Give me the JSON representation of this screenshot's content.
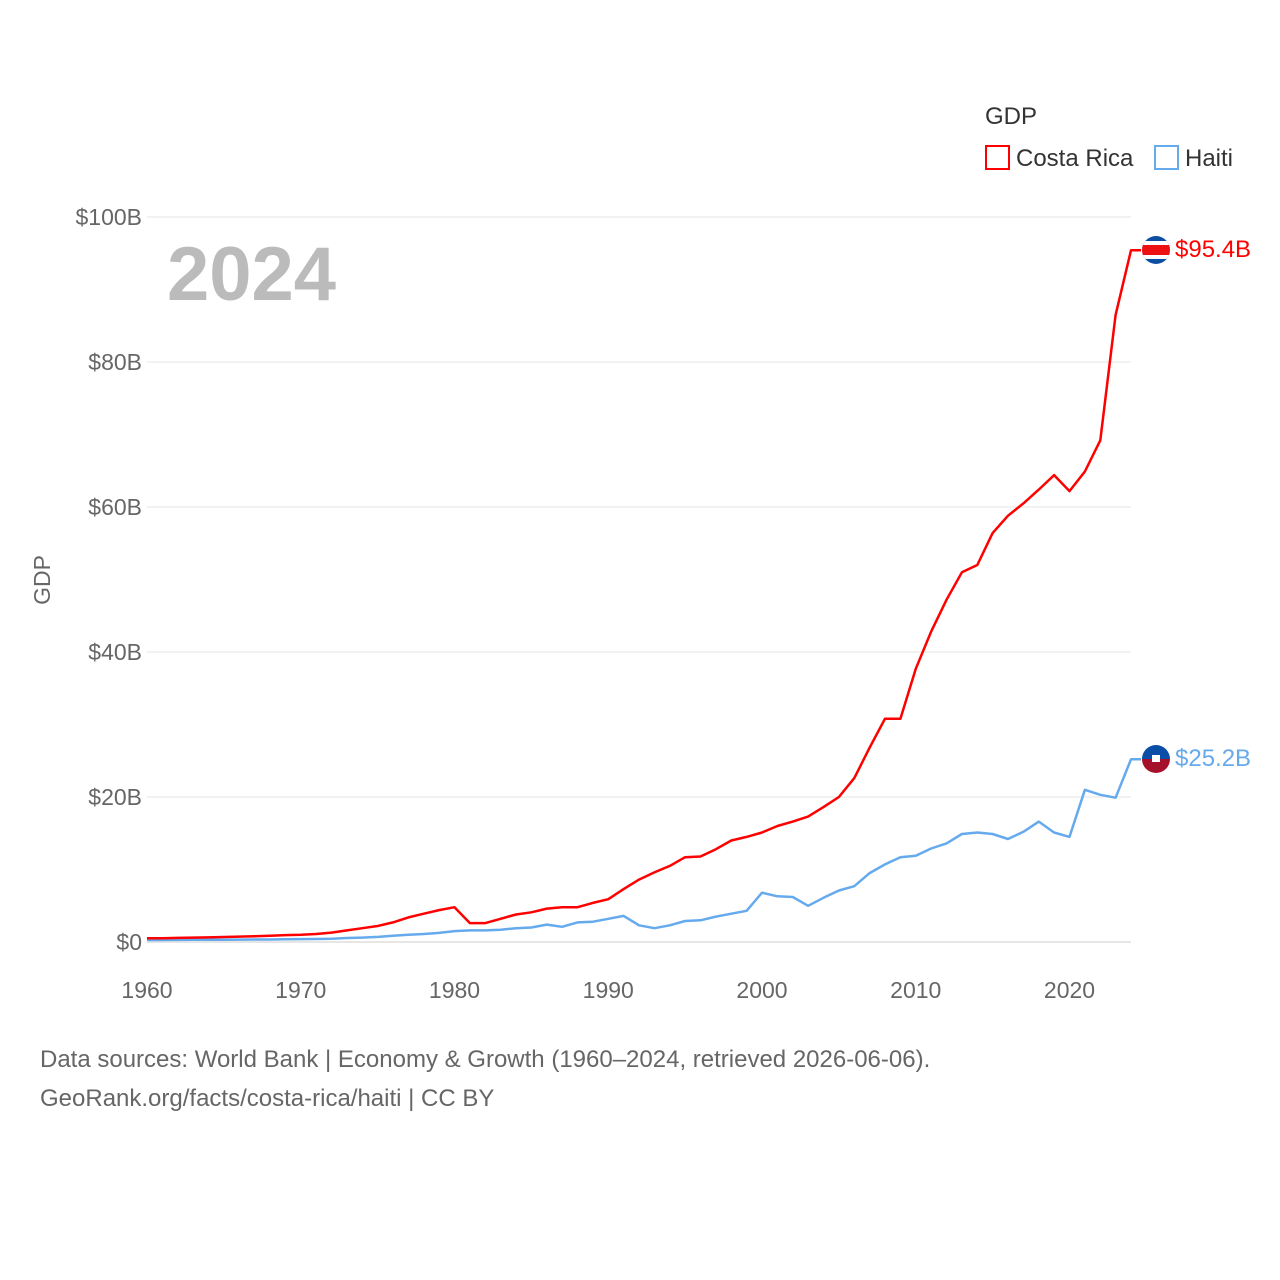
{
  "chart_data": {
    "type": "line",
    "title": "2024",
    "legend_title": "GDP",
    "legend_position": "top-right",
    "ylabel": "GDP",
    "xlabel": "",
    "xlim": [
      1960,
      2024
    ],
    "ylim": [
      0,
      100
    ],
    "y_unit": "billion USD",
    "grid": true,
    "x_ticks": [
      1960,
      1970,
      1980,
      1990,
      2000,
      2010,
      2020
    ],
    "x_tick_labels": [
      "1960",
      "1970",
      "1980",
      "1990",
      "2000",
      "2010",
      "2020"
    ],
    "y_ticks": [
      0,
      20,
      40,
      60,
      80,
      100
    ],
    "y_tick_labels": [
      "$0",
      "$20B",
      "$40B",
      "$60B",
      "$80B",
      "$100B"
    ],
    "x": [
      1960,
      1961,
      1962,
      1963,
      1964,
      1965,
      1966,
      1967,
      1968,
      1969,
      1970,
      1971,
      1972,
      1973,
      1974,
      1975,
      1976,
      1977,
      1978,
      1979,
      1980,
      1981,
      1982,
      1983,
      1984,
      1985,
      1986,
      1987,
      1988,
      1989,
      1990,
      1991,
      1992,
      1993,
      1994,
      1995,
      1996,
      1997,
      1998,
      1999,
      2000,
      2001,
      2002,
      2003,
      2004,
      2005,
      2006,
      2007,
      2008,
      2009,
      2010,
      2011,
      2012,
      2013,
      2014,
      2015,
      2016,
      2017,
      2018,
      2019,
      2020,
      2021,
      2022,
      2023,
      2024
    ],
    "series": [
      {
        "name": "Costa Rica",
        "color": "#ff0000",
        "end_label": "$95.4B",
        "values": [
          0.51,
          0.53,
          0.56,
          0.6,
          0.64,
          0.69,
          0.75,
          0.8,
          0.87,
          0.95,
          1.0,
          1.1,
          1.3,
          1.6,
          1.9,
          2.2,
          2.7,
          3.4,
          3.9,
          4.4,
          4.8,
          2.6,
          2.6,
          3.2,
          3.8,
          4.1,
          4.6,
          4.8,
          4.8,
          5.4,
          5.9,
          7.3,
          8.6,
          9.6,
          10.5,
          11.7,
          11.8,
          12.8,
          14.0,
          14.5,
          15.1,
          16.0,
          16.6,
          17.3,
          18.6,
          20.0,
          22.6,
          26.8,
          30.8,
          30.8,
          37.7,
          42.8,
          47.2,
          51.0,
          52.0,
          56.4,
          58.8,
          60.5,
          62.4,
          64.4,
          62.2,
          64.9,
          69.2,
          86.5,
          95.4
        ]
      },
      {
        "name": "Haiti",
        "color": "#66aaee",
        "end_label": "$25.2B",
        "values": [
          0.27,
          0.28,
          0.29,
          0.3,
          0.31,
          0.32,
          0.33,
          0.34,
          0.35,
          0.37,
          0.4,
          0.42,
          0.45,
          0.55,
          0.6,
          0.7,
          0.85,
          1.0,
          1.1,
          1.25,
          1.5,
          1.6,
          1.6,
          1.7,
          1.9,
          2.0,
          2.4,
          2.1,
          2.7,
          2.8,
          3.2,
          3.6,
          2.3,
          1.9,
          2.3,
          2.9,
          3.0,
          3.5,
          3.9,
          4.3,
          6.8,
          6.3,
          6.2,
          5.0,
          6.1,
          7.1,
          7.7,
          9.5,
          10.7,
          11.7,
          11.9,
          12.9,
          13.6,
          14.9,
          15.1,
          14.9,
          14.2,
          15.2,
          16.6,
          15.1,
          14.5,
          21.0,
          20.3,
          19.9,
          25.2
        ]
      }
    ]
  },
  "footer": {
    "line1": "Data sources: World Bank | Economy & Growth (1960–2024, retrieved 2026-06-06).",
    "line2": "GeoRank.org/facts/costa-rica/haiti | CC BY"
  }
}
